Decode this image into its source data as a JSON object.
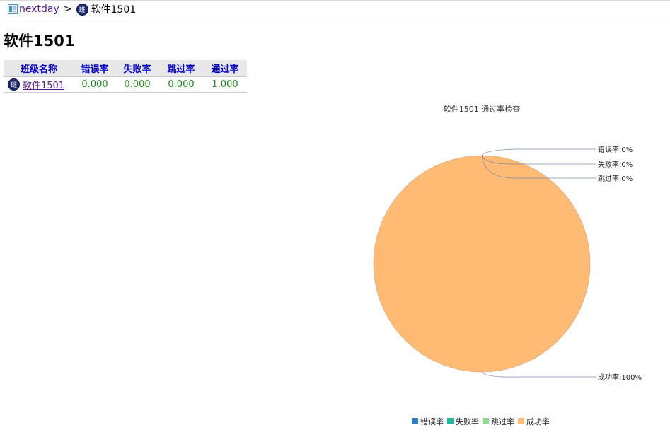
{
  "breadcrumb": {
    "root_label": "nextday",
    "separator": ">",
    "badge_text": "班",
    "current_label": "软件1501"
  },
  "page": {
    "title": "软件1501"
  },
  "table": {
    "columns": [
      "班级名称",
      "错误率",
      "失败率",
      "跳过率",
      "通过率"
    ],
    "rows": [
      {
        "badge_text": "班",
        "name": "软件1501",
        "error_rate": "0.000",
        "fail_rate": "0.000",
        "skip_rate": "0.000",
        "pass_rate": "1.000"
      }
    ]
  },
  "chart_data": {
    "type": "pie",
    "title": "软件1501 通过率检查",
    "categories": [
      "错误率",
      "失败率",
      "跳过率",
      "成功率"
    ],
    "values": [
      0,
      0,
      0,
      100
    ],
    "slice_labels": [
      "错误率:0%",
      "失败率:0%",
      "跳过率:0%",
      "成功率:100%"
    ],
    "colors": [
      "#2f7ec0",
      "#1bbc9b",
      "#8ed98e",
      "#ffbb73"
    ],
    "legend_position": "bottom"
  }
}
